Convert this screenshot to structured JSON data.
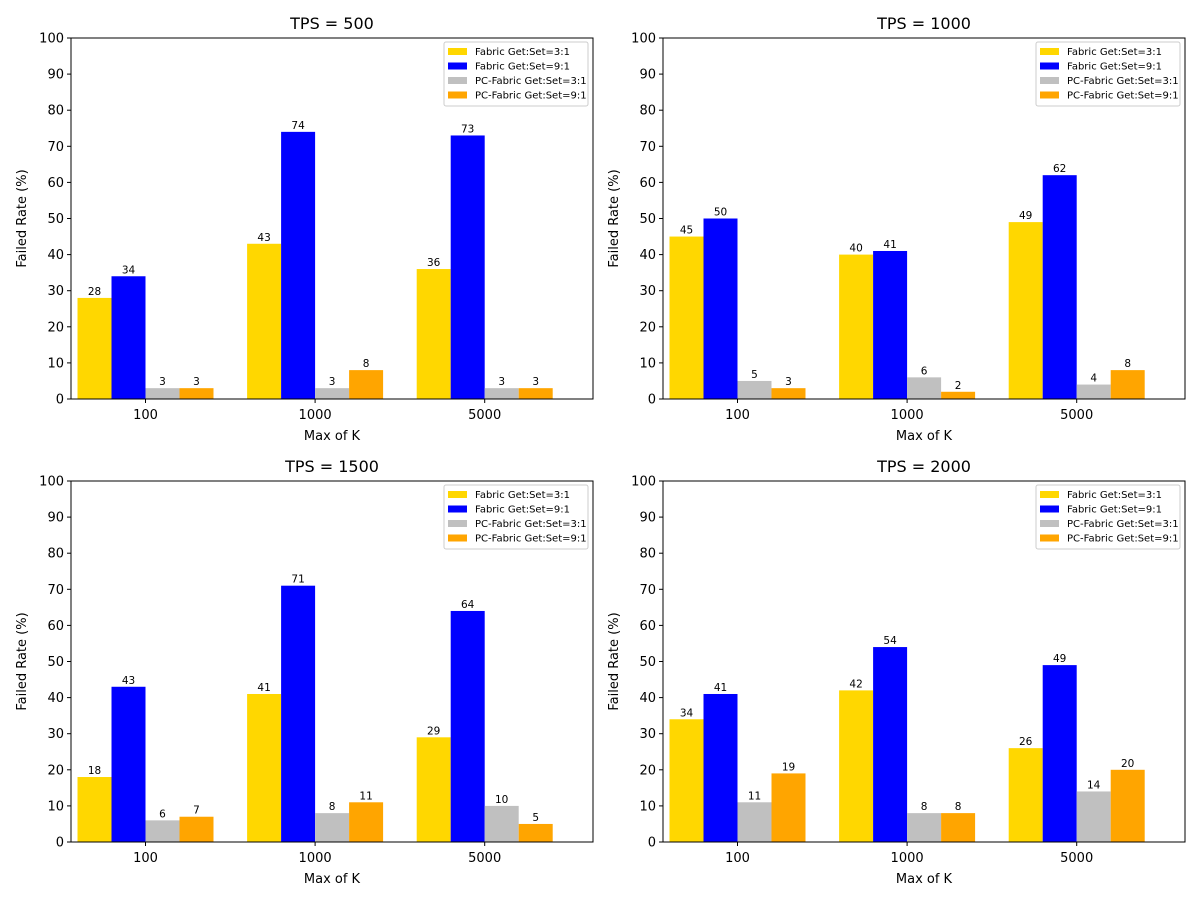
{
  "chart_data": [
    {
      "type": "bar",
      "title": "TPS = 500",
      "xlabel": "Max of K",
      "ylabel": "Failed Rate (%)",
      "ylim": [
        0,
        100
      ],
      "yticks": [
        0,
        10,
        20,
        30,
        40,
        50,
        60,
        70,
        80,
        90,
        100
      ],
      "categories": [
        "100",
        "1000",
        "5000"
      ],
      "legend_position": "top-right",
      "series": [
        {
          "name": "Fabric Get:Set=3:1",
          "color": "#FFD700",
          "values": [
            28,
            43,
            36
          ]
        },
        {
          "name": "Fabric Get:Set=9:1",
          "color": "#0000FF",
          "values": [
            34,
            74,
            73
          ]
        },
        {
          "name": "PC-Fabric Get:Set=3:1",
          "color": "#C0C0C0",
          "values": [
            3,
            3,
            3
          ]
        },
        {
          "name": "PC-Fabric Get:Set=9:1",
          "color": "#FFA500",
          "values": [
            3,
            8,
            3
          ]
        }
      ]
    },
    {
      "type": "bar",
      "title": "TPS = 1000",
      "xlabel": "Max of K",
      "ylabel": "Failed Rate (%)",
      "ylim": [
        0,
        100
      ],
      "yticks": [
        0,
        10,
        20,
        30,
        40,
        50,
        60,
        70,
        80,
        90,
        100
      ],
      "categories": [
        "100",
        "1000",
        "5000"
      ],
      "legend_position": "top-right",
      "series": [
        {
          "name": "Fabric Get:Set=3:1",
          "color": "#FFD700",
          "values": [
            45,
            40,
            49
          ]
        },
        {
          "name": "Fabric Get:Set=9:1",
          "color": "#0000FF",
          "values": [
            50,
            41,
            62
          ]
        },
        {
          "name": "PC-Fabric Get:Set=3:1",
          "color": "#C0C0C0",
          "values": [
            5,
            6,
            4
          ]
        },
        {
          "name": "PC-Fabric Get:Set=9:1",
          "color": "#FFA500",
          "values": [
            3,
            2,
            8
          ]
        }
      ]
    },
    {
      "type": "bar",
      "title": "TPS = 1500",
      "xlabel": "Max of K",
      "ylabel": "Failed Rate (%)",
      "ylim": [
        0,
        100
      ],
      "yticks": [
        0,
        10,
        20,
        30,
        40,
        50,
        60,
        70,
        80,
        90,
        100
      ],
      "categories": [
        "100",
        "1000",
        "5000"
      ],
      "legend_position": "top-right",
      "series": [
        {
          "name": "Fabric Get:Set=3:1",
          "color": "#FFD700",
          "values": [
            18,
            41,
            29
          ]
        },
        {
          "name": "Fabric Get:Set=9:1",
          "color": "#0000FF",
          "values": [
            43,
            71,
            64
          ]
        },
        {
          "name": "PC-Fabric Get:Set=3:1",
          "color": "#C0C0C0",
          "values": [
            6,
            8,
            10
          ]
        },
        {
          "name": "PC-Fabric Get:Set=9:1",
          "color": "#FFA500",
          "values": [
            7,
            11,
            5
          ]
        }
      ]
    },
    {
      "type": "bar",
      "title": "TPS = 2000",
      "xlabel": "Max of K",
      "ylabel": "Failed Rate (%)",
      "ylim": [
        0,
        100
      ],
      "yticks": [
        0,
        10,
        20,
        30,
        40,
        50,
        60,
        70,
        80,
        90,
        100
      ],
      "categories": [
        "100",
        "1000",
        "5000"
      ],
      "legend_position": "top-right",
      "series": [
        {
          "name": "Fabric Get:Set=3:1",
          "color": "#FFD700",
          "values": [
            34,
            42,
            26
          ]
        },
        {
          "name": "Fabric Get:Set=9:1",
          "color": "#0000FF",
          "values": [
            41,
            54,
            49
          ]
        },
        {
          "name": "PC-Fabric Get:Set=3:1",
          "color": "#C0C0C0",
          "values": [
            11,
            8,
            14
          ]
        },
        {
          "name": "PC-Fabric Get:Set=9:1",
          "color": "#FFA500",
          "values": [
            19,
            8,
            20
          ]
        }
      ]
    }
  ]
}
